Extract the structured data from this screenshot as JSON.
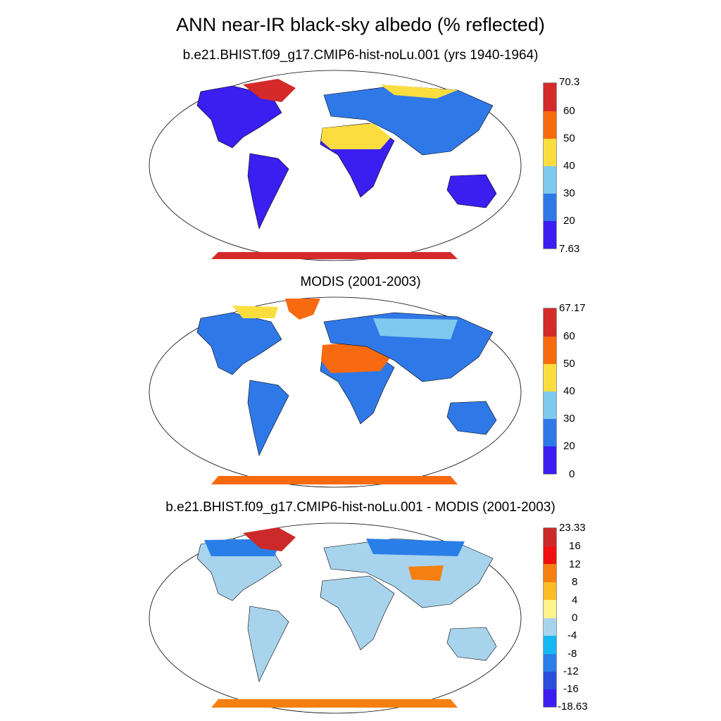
{
  "title": "ANN near-IR black-sky albedo (% reflected)",
  "panels": [
    {
      "subtitle": "b.e21.BHIST.f09_g17.CMIP6-hist-noLu.001 (yrs 1940-1964)",
      "colorbar": {
        "colors": [
          "#3a1ff0",
          "#2f78e8",
          "#7fc8ee",
          "#fbdd3f",
          "#f86a10",
          "#d42a2a"
        ],
        "labels": [
          "7.63",
          "20",
          "30",
          "40",
          "50",
          "60",
          "70.3"
        ]
      }
    },
    {
      "subtitle": "MODIS (2001-2003)",
      "colorbar": {
        "colors": [
          "#3a1ff0",
          "#2f78e8",
          "#7fc8ee",
          "#fbdd3f",
          "#f86a10",
          "#d42a2a"
        ],
        "labels": [
          "0",
          "20",
          "30",
          "40",
          "50",
          "60",
          "67.17"
        ]
      }
    },
    {
      "subtitle": "b.e21.BHIST.f09_g17.CMIP6-hist-noLu.001 - MODIS (2001-2003)",
      "colorbar": {
        "colors": [
          "#3a1ff0",
          "#2a4ddc",
          "#2a7ee8",
          "#16b7f2",
          "#a8d3ec",
          "#fff38a",
          "#fbbc25",
          "#f57f10",
          "#f01010",
          "#cc2a2a"
        ],
        "labels": [
          "-18.63",
          "-16",
          "-12",
          "-8",
          "-4",
          "0",
          "4",
          "8",
          "12",
          "16",
          "23.33"
        ]
      }
    }
  ]
}
